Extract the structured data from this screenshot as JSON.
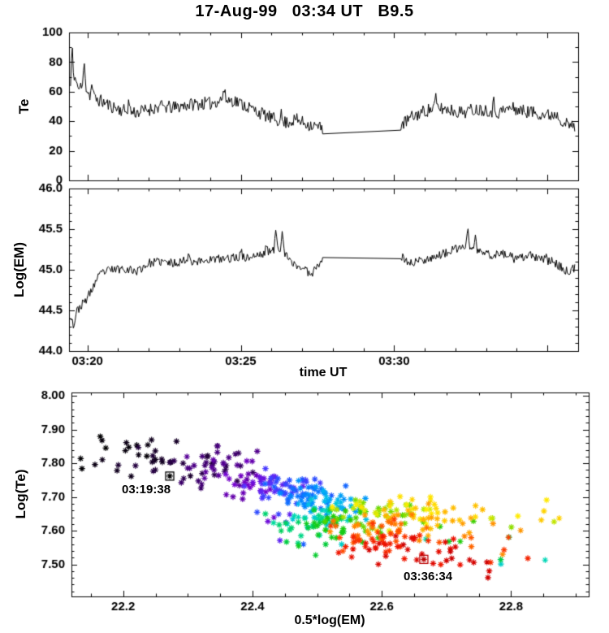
{
  "title": "17-Aug-99   03:34 UT   B9.5",
  "chart_data": [
    {
      "panel": "te-time-series",
      "type": "line",
      "ylabel": "Te",
      "ylim": [
        0,
        100
      ],
      "yticks": [
        0,
        20,
        40,
        60,
        80,
        100
      ],
      "ytick_labels": [
        "0",
        "20",
        "40",
        "60",
        "80",
        "100"
      ],
      "y_minor_step": 10,
      "x_unit": "minutes after 03:00 UT",
      "xlim": [
        19.4,
        36.0
      ],
      "xticks": [
        20,
        25,
        30,
        35
      ],
      "xtick_labels": [
        "",
        "",
        "",
        ""
      ],
      "x_minor_step": 1,
      "data_start": 19.45,
      "data_end": 35.9,
      "gap": [
        27.7,
        30.2
      ],
      "noise_amp": 4.5,
      "seed": 11,
      "spikes": [
        [
          19.5,
          22
        ],
        [
          19.62,
          10
        ],
        [
          19.9,
          18
        ],
        [
          20.15,
          9
        ],
        [
          21.35,
          7
        ],
        [
          24.45,
          7
        ],
        [
          26.3,
          7
        ],
        [
          31.35,
          7
        ],
        [
          33.25,
          6
        ]
      ],
      "anchors": [
        [
          19.45,
          60
        ],
        [
          19.5,
          72
        ],
        [
          19.55,
          63
        ],
        [
          19.7,
          62
        ],
        [
          19.9,
          64
        ],
        [
          20.1,
          57
        ],
        [
          20.4,
          54
        ],
        [
          20.8,
          50
        ],
        [
          21.2,
          47
        ],
        [
          21.6,
          46
        ],
        [
          22.0,
          48
        ],
        [
          22.4,
          50
        ],
        [
          22.8,
          49
        ],
        [
          23.2,
          51
        ],
        [
          23.6,
          52
        ],
        [
          24.0,
          52
        ],
        [
          24.4,
          55
        ],
        [
          24.8,
          54
        ],
        [
          25.2,
          50
        ],
        [
          25.6,
          46
        ],
        [
          26.0,
          42
        ],
        [
          26.4,
          39
        ],
        [
          26.8,
          41
        ],
        [
          27.2,
          38
        ],
        [
          27.7,
          35
        ],
        [
          30.2,
          37
        ],
        [
          30.6,
          43
        ],
        [
          31.0,
          47
        ],
        [
          31.4,
          49
        ],
        [
          31.8,
          48
        ],
        [
          32.2,
          46
        ],
        [
          32.6,
          48
        ],
        [
          33.0,
          48
        ],
        [
          33.4,
          46
        ],
        [
          33.8,
          49
        ],
        [
          34.2,
          47
        ],
        [
          34.6,
          46
        ],
        [
          35.0,
          44
        ],
        [
          35.3,
          45
        ],
        [
          35.6,
          38
        ],
        [
          35.9,
          36
        ]
      ]
    },
    {
      "panel": "em-time-series",
      "type": "line",
      "ylabel": "Log(EM)",
      "xlabel": "time UT",
      "ylim": [
        44.0,
        46.0
      ],
      "yticks": [
        44.0,
        44.5,
        45.0,
        45.5,
        46.0
      ],
      "ytick_labels": [
        "44.0",
        "44.5",
        "45.0",
        "45.5",
        "46.0"
      ],
      "y_minor_step": 0.1,
      "x_unit": "minutes after 03:00 UT",
      "xlim": [
        19.4,
        36.0
      ],
      "xticks": [
        20,
        25,
        30,
        35
      ],
      "xtick_labels": [
        "03:20",
        "03:25",
        "03:30",
        ""
      ],
      "x_minor_step": 1,
      "data_start": 19.45,
      "data_end": 35.9,
      "gap": [
        27.7,
        30.2
      ],
      "noise_amp": 0.055,
      "seed": 23,
      "spikes": [
        [
          26.15,
          0.3
        ],
        [
          26.35,
          0.22
        ],
        [
          25.85,
          0.14
        ],
        [
          25.0,
          0.12
        ],
        [
          23.3,
          0.1
        ],
        [
          32.4,
          0.2
        ],
        [
          32.65,
          0.15
        ],
        [
          34.95,
          0.13
        ],
        [
          19.55,
          -0.1
        ]
      ],
      "anchors": [
        [
          19.45,
          44.45
        ],
        [
          19.55,
          44.38
        ],
        [
          19.7,
          44.52
        ],
        [
          19.9,
          44.6
        ],
        [
          20.1,
          44.72
        ],
        [
          20.3,
          44.88
        ],
        [
          20.5,
          44.97
        ],
        [
          20.8,
          45.0
        ],
        [
          21.2,
          45.02
        ],
        [
          21.6,
          44.98
        ],
        [
          22.0,
          45.08
        ],
        [
          22.4,
          45.1
        ],
        [
          22.8,
          45.08
        ],
        [
          23.2,
          45.12
        ],
        [
          23.6,
          45.1
        ],
        [
          24.0,
          45.13
        ],
        [
          24.4,
          45.13
        ],
        [
          24.8,
          45.15
        ],
        [
          25.2,
          45.15
        ],
        [
          25.6,
          45.18
        ],
        [
          26.0,
          45.22
        ],
        [
          26.3,
          45.28
        ],
        [
          26.6,
          45.1
        ],
        [
          27.0,
          45.02
        ],
        [
          27.3,
          44.95
        ],
        [
          27.7,
          45.17
        ],
        [
          30.2,
          45.17
        ],
        [
          30.5,
          45.08
        ],
        [
          31.0,
          45.13
        ],
        [
          31.5,
          45.18
        ],
        [
          32.0,
          45.25
        ],
        [
          32.4,
          45.3
        ],
        [
          32.8,
          45.22
        ],
        [
          33.2,
          45.18
        ],
        [
          33.6,
          45.2
        ],
        [
          34.0,
          45.12
        ],
        [
          34.4,
          45.18
        ],
        [
          34.8,
          45.12
        ],
        [
          35.2,
          45.1
        ],
        [
          35.6,
          44.98
        ],
        [
          35.9,
          45.02
        ]
      ]
    },
    {
      "panel": "te-em-scatter",
      "type": "scatter",
      "xlabel": "0.5*log(EM)",
      "ylabel": "Log(Te)",
      "xlim": [
        22.12,
        22.92
      ],
      "ylim": [
        7.405,
        8.01
      ],
      "xticks": [
        22.2,
        22.4,
        22.6,
        22.8
      ],
      "xtick_labels": [
        "22.2",
        "22.4",
        "22.6",
        "22.8"
      ],
      "x_minor_step": 0.05,
      "yticks": [
        7.5,
        7.6,
        7.7,
        7.8,
        7.9,
        8.0
      ],
      "ytick_labels": [
        "7.50",
        "7.60",
        "7.70",
        "7.80",
        "7.90",
        "8.00"
      ],
      "y_minor_step": 0.02,
      "n_points": 520,
      "seed": 77,
      "sigma_x": 0.035,
      "sigma_y": 0.03,
      "color_by": "time from 03:19:38 (black/violet) to 03:36:34 (red)",
      "track": [
        [
          0,
          22.2,
          7.85
        ],
        [
          0.04,
          22.26,
          7.81
        ],
        [
          0.08,
          22.3,
          7.79
        ],
        [
          0.12,
          22.34,
          7.8
        ],
        [
          0.16,
          22.38,
          7.76
        ],
        [
          0.2,
          22.42,
          7.74
        ],
        [
          0.25,
          22.44,
          7.73
        ],
        [
          0.3,
          22.47,
          7.71
        ],
        [
          0.35,
          22.5,
          7.7
        ],
        [
          0.4,
          22.52,
          7.68
        ],
        [
          0.45,
          22.5,
          7.65
        ],
        [
          0.5,
          22.47,
          7.63
        ],
        [
          0.55,
          22.52,
          7.61
        ],
        [
          0.6,
          22.57,
          7.63
        ],
        [
          0.65,
          22.6,
          7.66
        ],
        [
          0.7,
          22.63,
          7.66
        ],
        [
          0.75,
          22.66,
          7.65
        ],
        [
          0.8,
          22.62,
          7.62
        ],
        [
          0.85,
          22.58,
          7.6
        ],
        [
          0.9,
          22.6,
          7.57
        ],
        [
          0.95,
          22.63,
          7.55
        ],
        [
          1,
          22.66,
          7.53
        ]
      ],
      "color_stops": [
        [
          0,
          "#000000"
        ],
        [
          0.06,
          "#200038"
        ],
        [
          0.12,
          "#4b0082"
        ],
        [
          0.18,
          "#7700cc"
        ],
        [
          0.24,
          "#5533ff"
        ],
        [
          0.3,
          "#2255ff"
        ],
        [
          0.36,
          "#0088ff"
        ],
        [
          0.42,
          "#00bbee"
        ],
        [
          0.48,
          "#00ddaa"
        ],
        [
          0.52,
          "#00cc44"
        ],
        [
          0.58,
          "#22cc00"
        ],
        [
          0.64,
          "#88dd00"
        ],
        [
          0.7,
          "#ffee00"
        ],
        [
          0.76,
          "#ffbb00"
        ],
        [
          0.82,
          "#ff8800"
        ],
        [
          0.88,
          "#ff4400"
        ],
        [
          0.94,
          "#ee1100"
        ],
        [
          1,
          "#cc0000"
        ]
      ],
      "start_point": {
        "x": 22.272,
        "y": 7.762,
        "label": "03:19:38",
        "color": "#000000"
      },
      "end_point": {
        "x": 22.665,
        "y": 7.515,
        "label": "03:36:34",
        "color": "#bb0000"
      }
    }
  ]
}
